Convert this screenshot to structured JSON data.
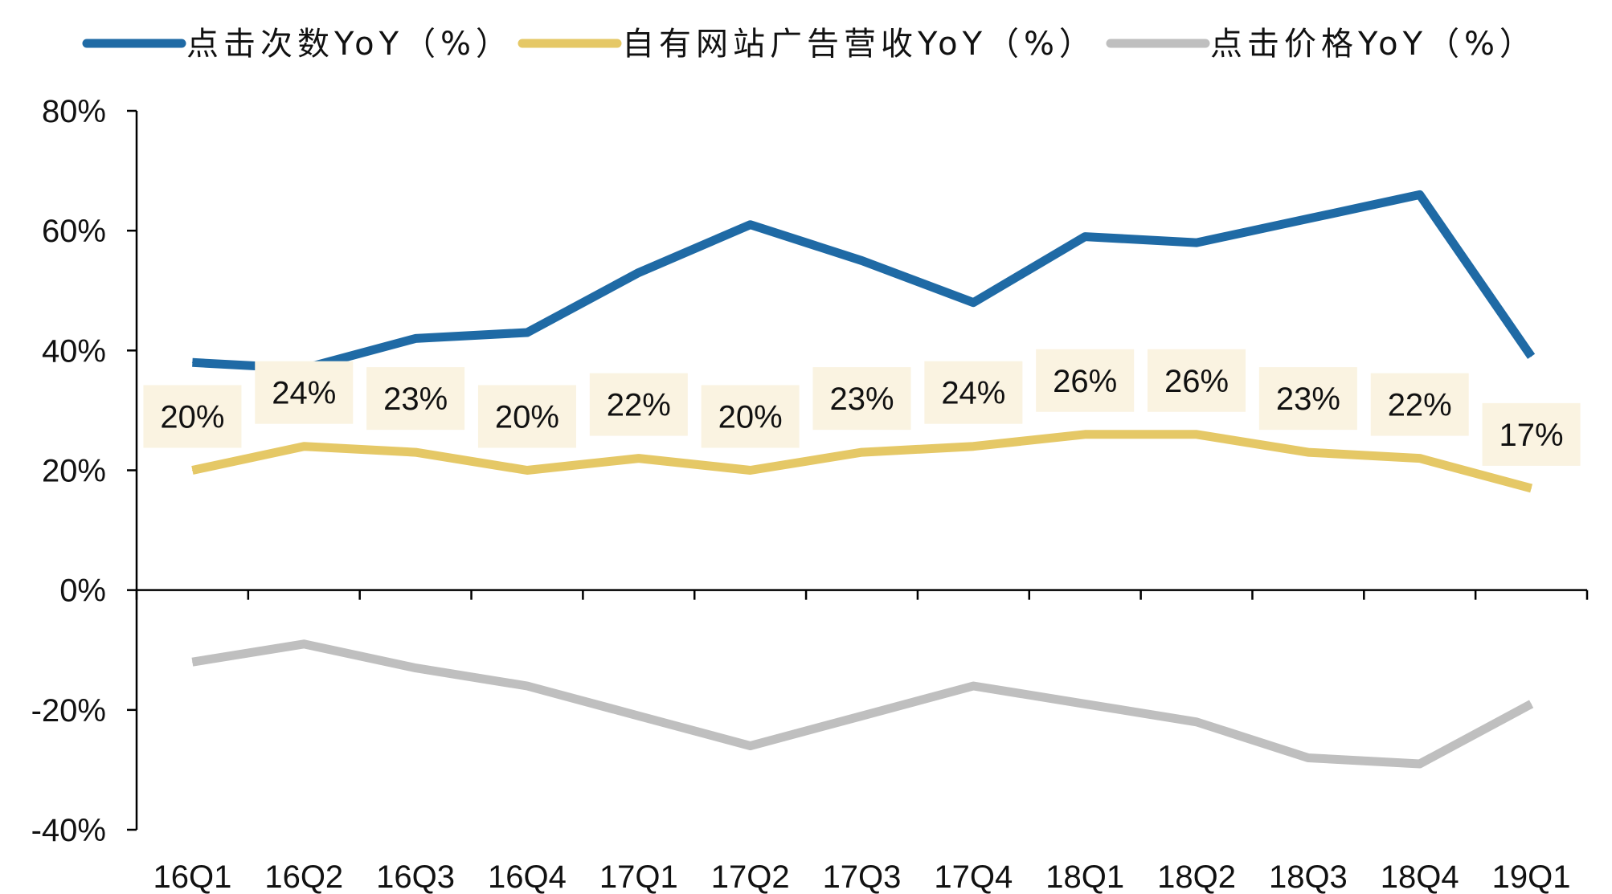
{
  "chart_data": {
    "type": "line",
    "categories": [
      "16Q1",
      "16Q2",
      "16Q3",
      "16Q4",
      "17Q1",
      "17Q2",
      "17Q3",
      "17Q4",
      "18Q1",
      "18Q2",
      "18Q3",
      "18Q4",
      "19Q1"
    ],
    "ylim": [
      -40,
      80
    ],
    "yticks": [
      80,
      60,
      40,
      20,
      0,
      -20,
      -40
    ],
    "ytick_labels": [
      "80%",
      "60%",
      "40%",
      "20%",
      "0%",
      "-20%",
      "-40%"
    ],
    "grid": false,
    "legend_position": "top",
    "label_bg_color": "#FAF3E1",
    "series": [
      {
        "name": "点击次数YoY（%）",
        "color": "#1F6AA5",
        "values": [
          38,
          37,
          42,
          43,
          53,
          61,
          55,
          48,
          59,
          58,
          62,
          66,
          39
        ]
      },
      {
        "name": "自有网站广告营收YoY（%）",
        "color": "#E5C866",
        "values": [
          20,
          24,
          23,
          20,
          22,
          20,
          23,
          24,
          26,
          26,
          23,
          22,
          17
        ],
        "data_labels": [
          "20%",
          "24%",
          "23%",
          "20%",
          "22%",
          "20%",
          "23%",
          "24%",
          "26%",
          "26%",
          "23%",
          "22%",
          "17%"
        ]
      },
      {
        "name": "点击价格YoY（%）",
        "color": "#BFBFBF",
        "values": [
          -12,
          -9,
          -13,
          -16,
          -21,
          -26,
          -21,
          -16,
          -19,
          -22,
          -28,
          -29,
          -19
        ]
      }
    ]
  }
}
